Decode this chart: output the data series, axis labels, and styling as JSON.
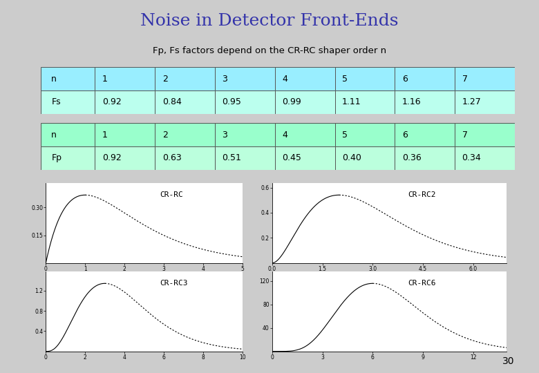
{
  "title": "Noise in Detector Front-Ends",
  "subtitle": "Fp, Fs factors depend on the CR-RC shaper order n",
  "title_color": "#3333AA",
  "bg_color": "#CCCCCC",
  "table1_header_bg": "#99EEFF",
  "table1_row_bg": "#BBFFEE",
  "table2_header_bg": "#99FFCC",
  "table2_row_bg": "#BBFFDD",
  "table_border_color": "#555555",
  "n_values": [
    "1",
    "2",
    "3",
    "4",
    "5",
    "6",
    "7"
  ],
  "Fs_values": [
    "0.92",
    "0.84",
    "0.95",
    "0.99",
    "1.11",
    "1.16",
    "1.27"
  ],
  "Fp_values": [
    "0.92",
    "0.63",
    "0.51",
    "0.45",
    "0.40",
    "0.36",
    "0.34"
  ],
  "plot_configs": [
    {
      "label": "CR-RC",
      "n": 1,
      "tmax": 5,
      "col": 0,
      "row": 0
    },
    {
      "label": "CR-RC2",
      "n": 2,
      "tmax": 7,
      "col": 1,
      "row": 0
    },
    {
      "label": "CR-RC3",
      "n": 3,
      "tmax": 10,
      "col": 0,
      "row": 1
    },
    {
      "label": "CR-RC6",
      "n": 6,
      "tmax": 14,
      "col": 1,
      "row": 1
    }
  ],
  "page_number": "30"
}
